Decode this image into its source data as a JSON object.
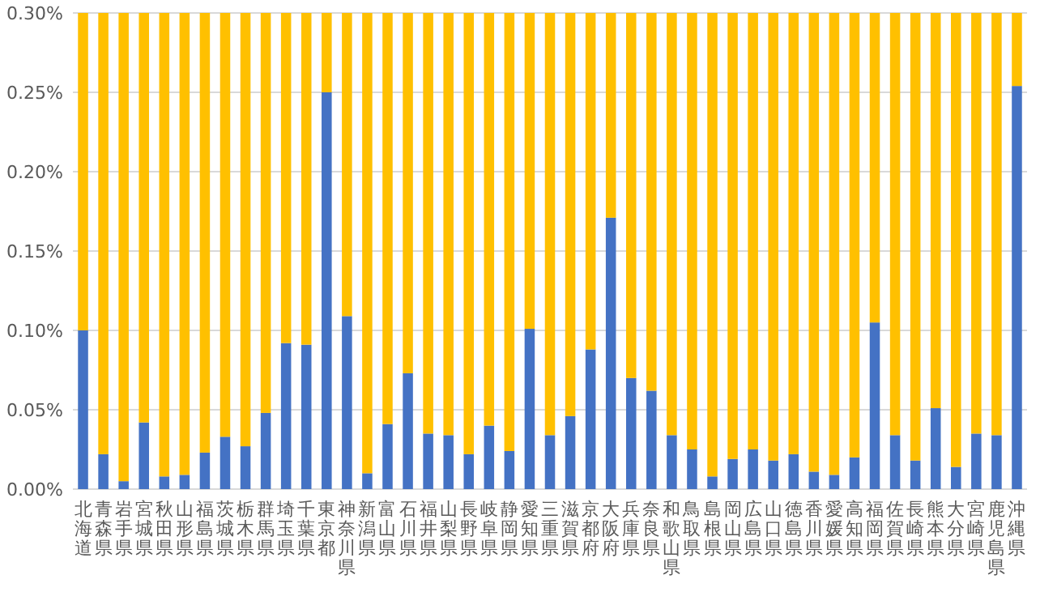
{
  "chart_data": {
    "type": "bar",
    "stacked": true,
    "grid": "y",
    "ylim": [
      0,
      0.3
    ],
    "yticks": [
      {
        "value": 0,
        "label": "0.00%"
      },
      {
        "value": 0.05,
        "label": "0.05%"
      },
      {
        "value": 0.1,
        "label": "0.10%"
      },
      {
        "value": 0.15,
        "label": "0.15%"
      },
      {
        "value": 0.2,
        "label": "0.20%"
      },
      {
        "value": 0.25,
        "label": "0.25%"
      },
      {
        "value": 0.3,
        "label": "0.30%"
      }
    ],
    "categories": [
      "北海道",
      "青森県",
      "岩手県",
      "宮城県",
      "秋田県",
      "山形県",
      "福島県",
      "茨城県",
      "栃木県",
      "群馬県",
      "埼玉県",
      "千葉県",
      "東京都",
      "神奈川県",
      "新潟県",
      "富山県",
      "石川県",
      "福井県",
      "山梨県",
      "長野県",
      "岐阜県",
      "静岡県",
      "愛知県",
      "三重県",
      "滋賀県",
      "京都府",
      "大阪府",
      "兵庫県",
      "奈良県",
      "和歌山県",
      "鳥取県",
      "島根県",
      "岡山県",
      "広島県",
      "山口県",
      "徳島県",
      "香川県",
      "愛媛県",
      "高知県",
      "福岡県",
      "佐賀県",
      "長崎県",
      "熊本県",
      "大分県",
      "宮崎県",
      "鹿児島県",
      "沖縄県"
    ],
    "series": [
      {
        "color": "#4472c4",
        "values": [
          0.1,
          0.022,
          0.005,
          0.042,
          0.008,
          0.009,
          0.023,
          0.033,
          0.027,
          0.048,
          0.092,
          0.091,
          0.25,
          0.109,
          0.01,
          0.041,
          0.073,
          0.035,
          0.034,
          0.022,
          0.04,
          0.024,
          0.101,
          0.034,
          0.046,
          0.088,
          0.171,
          0.07,
          0.062,
          0.034,
          0.025,
          0.008,
          0.019,
          0.025,
          0.018,
          0.022,
          0.011,
          0.009,
          0.02,
          0.105,
          0.034,
          0.018,
          0.051,
          0.014,
          0.035,
          0.034,
          0.254
        ]
      },
      {
        "color": "#ffc000",
        "values": [
          0.2,
          0.278,
          0.295,
          0.258,
          0.292,
          0.291,
          0.277,
          0.267,
          0.273,
          0.252,
          0.208,
          0.209,
          0.05,
          0.191,
          0.29,
          0.259,
          0.227,
          0.265,
          0.266,
          0.278,
          0.26,
          0.276,
          0.199,
          0.266,
          0.254,
          0.212,
          0.129,
          0.23,
          0.238,
          0.266,
          0.275,
          0.292,
          0.281,
          0.275,
          0.282,
          0.278,
          0.289,
          0.291,
          0.28,
          0.195,
          0.266,
          0.282,
          0.249,
          0.286,
          0.265,
          0.266,
          0.046
        ]
      }
    ]
  }
}
